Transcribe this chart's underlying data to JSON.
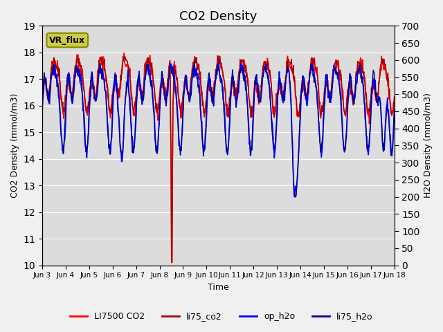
{
  "title": "CO2 Density",
  "xlabel": "Time",
  "ylabel_left": "CO2 Density (mmol/m3)",
  "ylabel_right": "H2O Density (mmol/m3)",
  "ylim_left": [
    10.0,
    19.0
  ],
  "ylim_right": [
    0,
    700
  ],
  "yticks_left": [
    10.0,
    11.0,
    12.0,
    13.0,
    14.0,
    15.0,
    16.0,
    17.0,
    18.0,
    19.0
  ],
  "yticks_right": [
    0,
    50,
    100,
    150,
    200,
    250,
    300,
    350,
    400,
    450,
    500,
    550,
    600,
    650,
    700
  ],
  "xtick_labels": [
    "Jun 3",
    "Jun 4",
    "Jun 5",
    "Jun 6",
    "Jun 7",
    "Jun 8",
    "Jun 9",
    "Jun 10",
    "Jun 11",
    "Jun 12",
    "Jun 13",
    "Jun 14",
    "Jun 15",
    "Jun 16",
    "Jun 17",
    "Jun 18"
  ],
  "xtick_positions": [
    0,
    1,
    2,
    3,
    4,
    5,
    6,
    7,
    8,
    9,
    10,
    11,
    12,
    13,
    14,
    15
  ],
  "color_co2_7500": "#FF0000",
  "color_li75_co2": "#AA0000",
  "color_op_h2o": "#0000FF",
  "color_li75_h2o": "#000099",
  "legend_labels": [
    "LI7500 CO2",
    "li75_co2",
    "op_h2o",
    "li75_h2o"
  ],
  "annotation_text": "VR_flux",
  "annotation_bg": "#CCCC44",
  "annotation_edge": "#888800",
  "fig_facecolor": "#F0F0F0",
  "axes_facecolor": "#DCDCDC",
  "title_fontsize": 13,
  "n_days": 15,
  "pts_per_day": 48
}
